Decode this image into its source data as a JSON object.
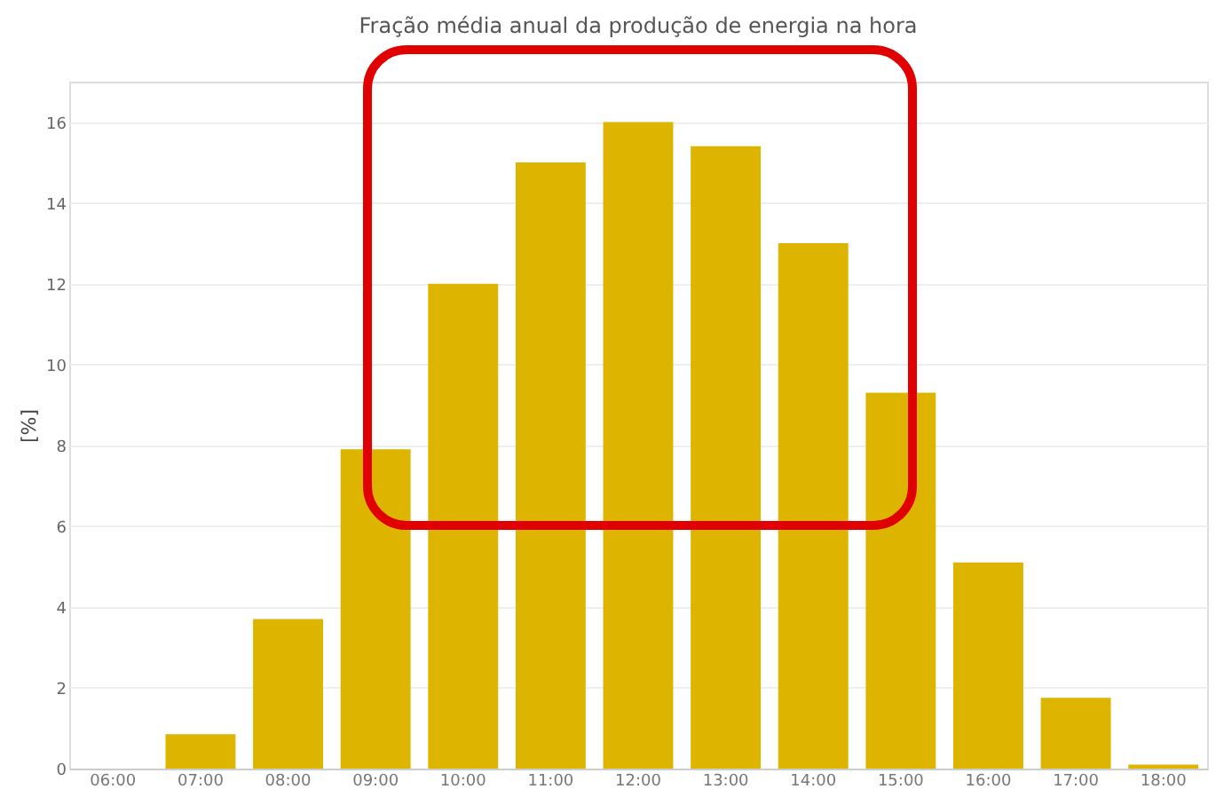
{
  "chart_data": {
    "type": "bar",
    "title": "Fração média anual da produção de energia na hora",
    "ylabel": "[%]",
    "categories": [
      "06:00",
      "07:00",
      "08:00",
      "09:00",
      "10:00",
      "11:00",
      "12:00",
      "13:00",
      "14:00",
      "15:00",
      "16:00",
      "17:00",
      "18:00"
    ],
    "values": [
      0,
      0.85,
      3.7,
      7.9,
      12,
      15,
      16,
      15.4,
      13,
      9.3,
      5.1,
      1.75,
      0.1
    ],
    "color": "#ddb500",
    "ylim": [
      0,
      17
    ],
    "yticks": [
      0,
      2,
      4,
      6,
      8,
      10,
      12,
      14,
      16
    ],
    "grid": "y"
  }
}
